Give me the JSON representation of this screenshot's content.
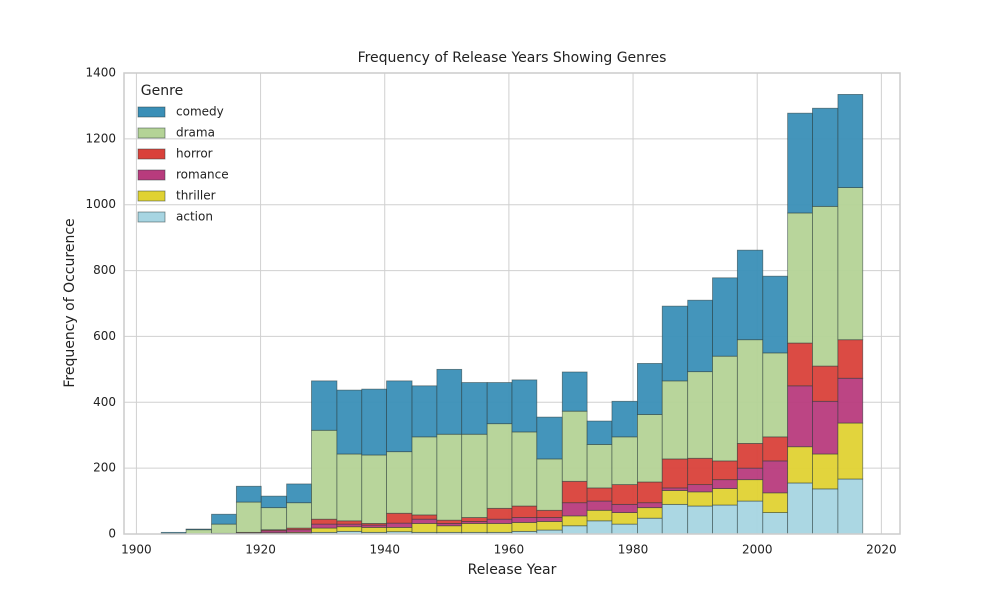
{
  "chart_data": {
    "type": "histogram",
    "title": "Frequency of Release Years Showing Genres",
    "x_label": "Release Year",
    "y_label": "Frequency of Occurence",
    "legend_title": "Genre",
    "legend": "upper left",
    "grid": true,
    "stacked": true,
    "bins": [
      1904.0,
      1908.0,
      1912.1,
      1916.1,
      1920.1,
      1924.2,
      1928.2,
      1932.3,
      1936.3,
      1940.3,
      1944.4,
      1948.4,
      1952.4,
      1956.5,
      1960.5,
      1964.5,
      1968.6,
      1972.6,
      1976.6,
      1980.7,
      1984.7,
      1988.8,
      1992.8,
      1996.8,
      2000.9,
      2004.9,
      2008.9,
      2013.0,
      2017.0
    ],
    "series": [
      {
        "name": "comedy",
        "color": "#3a8fb7",
        "values": [
          3,
          2,
          30,
          48,
          35,
          57,
          150,
          194,
          200,
          215,
          155,
          197,
          157,
          125,
          158,
          127,
          119,
          71,
          108,
          155,
          227,
          217,
          238,
          272,
          233,
          303,
          298,
          283
        ]
      },
      {
        "name": "drama",
        "color": "#b4d396",
        "values": [
          2,
          13,
          28,
          92,
          67,
          77,
          270,
          203,
          208,
          187,
          237,
          261,
          253,
          257,
          225,
          156,
          213,
          132,
          145,
          205,
          237,
          263,
          318,
          315,
          255,
          395,
          485,
          462
        ]
      },
      {
        "name": "horror",
        "color": "#d9413a",
        "values": [
          0,
          0,
          1,
          2,
          3,
          5,
          15,
          10,
          5,
          30,
          13,
          10,
          12,
          33,
          35,
          22,
          65,
          40,
          60,
          63,
          88,
          80,
          57,
          75,
          73,
          130,
          107,
          117
        ]
      },
      {
        "name": "romance",
        "color": "#b83b7d",
        "values": [
          0,
          0,
          1,
          1,
          6,
          8,
          12,
          8,
          7,
          13,
          13,
          7,
          6,
          13,
          15,
          12,
          40,
          28,
          25,
          15,
          8,
          22,
          27,
          35,
          97,
          185,
          160,
          136
        ]
      },
      {
        "name": "thriller",
        "color": "#e0d233",
        "values": [
          0,
          0,
          0,
          1,
          2,
          3,
          13,
          14,
          15,
          13,
          27,
          20,
          27,
          27,
          27,
          26,
          30,
          32,
          35,
          32,
          42,
          43,
          50,
          65,
          60,
          110,
          106,
          170
        ]
      },
      {
        "name": "action",
        "color": "#a7d5e2",
        "values": [
          0,
          0,
          0,
          1,
          2,
          2,
          5,
          8,
          5,
          7,
          5,
          5,
          5,
          5,
          8,
          12,
          25,
          40,
          30,
          48,
          90,
          85,
          88,
          100,
          65,
          155,
          137,
          167
        ]
      }
    ],
    "stack_order": [
      "action",
      "thriller",
      "romance",
      "horror",
      "drama",
      "comedy"
    ],
    "xlim": [
      1898,
      2023
    ],
    "xticks": [
      1900,
      1920,
      1940,
      1960,
      1980,
      2000,
      2020
    ],
    "ylim": [
      0,
      1400
    ],
    "yticks": [
      0,
      200,
      400,
      600,
      800,
      1000,
      1200,
      1400
    ]
  }
}
